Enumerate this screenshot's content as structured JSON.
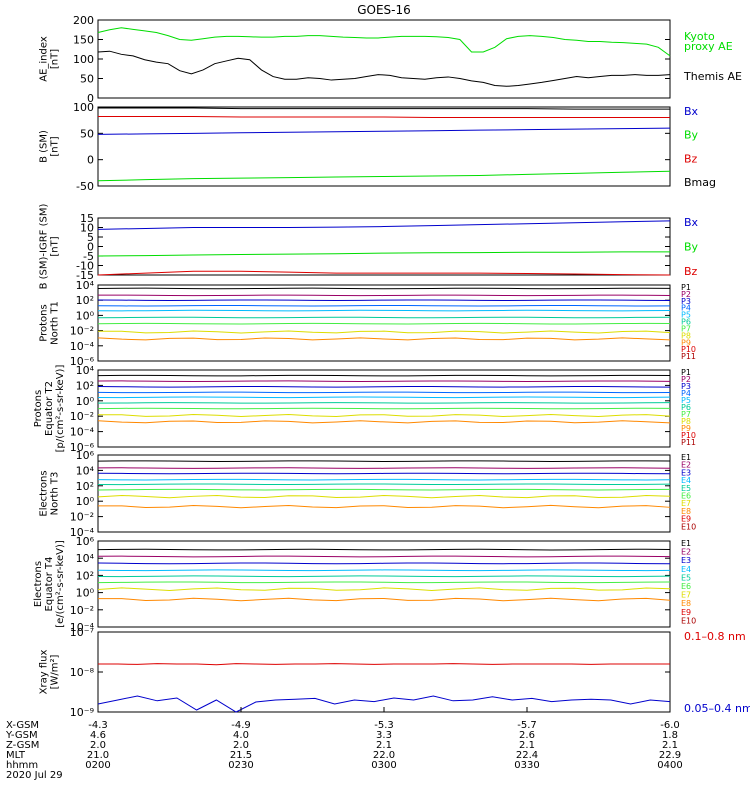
{
  "title": "GOES-16",
  "colors": {
    "black": "#000000",
    "red": "#dd0000",
    "green": "#00dd00",
    "blue": "#0000cc",
    "cyan": "#00bbff",
    "teal": "#00cc99",
    "yellow": "#dddd00",
    "orange": "#ff8800",
    "darkred": "#aa0000",
    "purple": "#990066",
    "navy": "#000099",
    "lightgreen": "#44ee44"
  },
  "chart_data": [
    {
      "type": "line",
      "ylabel": "AE_index\n[nT]",
      "ytick_labels": [
        "200",
        "150",
        "100",
        "50",
        "0"
      ],
      "ylim": [
        0,
        200
      ],
      "series": [
        {
          "name": "Kyoto proxy AE",
          "color": "#00dd00",
          "values": [
            168,
            175,
            180,
            176,
            172,
            168,
            160,
            150,
            148,
            152,
            156,
            158,
            158,
            157,
            156,
            156,
            158,
            158,
            160,
            160,
            158,
            156,
            155,
            154,
            154,
            156,
            158,
            158,
            158,
            157,
            155,
            150,
            118,
            118,
            130,
            152,
            158,
            160,
            158,
            155,
            150,
            148,
            145,
            145,
            143,
            142,
            140,
            138,
            130,
            108
          ]
        },
        {
          "name": "Themis AE",
          "color": "#000000",
          "values": [
            118,
            120,
            112,
            108,
            98,
            92,
            88,
            70,
            62,
            72,
            88,
            95,
            102,
            98,
            72,
            55,
            48,
            48,
            52,
            50,
            46,
            48,
            50,
            55,
            60,
            58,
            52,
            50,
            48,
            52,
            54,
            50,
            44,
            40,
            32,
            30,
            32,
            36,
            40,
            45,
            50,
            55,
            52,
            55,
            58,
            58,
            60,
            58,
            58,
            60
          ]
        }
      ]
    },
    {
      "type": "line",
      "ylabel": "B (SM)\n[nT]",
      "ytick_labels": [
        "100",
        "50",
        "0",
        "-50"
      ],
      "ylim": [
        -50,
        100
      ],
      "series": [
        {
          "name": "Bx",
          "color": "#0000cc",
          "values": [
            48,
            49,
            50,
            51,
            52,
            53,
            54,
            55,
            56,
            57,
            58,
            59,
            60
          ]
        },
        {
          "name": "By",
          "color": "#00dd00",
          "values": [
            -40,
            -38,
            -36,
            -35,
            -34,
            -33,
            -32,
            -31,
            -30,
            -28,
            -26,
            -24,
            -22
          ]
        },
        {
          "name": "Bz",
          "color": "#dd0000",
          "values": [
            82,
            82,
            82,
            81,
            81,
            81,
            81,
            80,
            80,
            80,
            80,
            80,
            80
          ]
        },
        {
          "name": "Bmag",
          "color": "#000000",
          "values": [
            98,
            98,
            98,
            97,
            97,
            97,
            97,
            97,
            97,
            97,
            96,
            96,
            96
          ]
        }
      ]
    },
    {
      "type": "line",
      "ylabel": "B (SM)-IGRF (SM)\n[nT]",
      "ytick_labels": [
        "15",
        "10",
        "5",
        "0",
        "-5",
        "-10",
        "-15"
      ],
      "ylim": [
        -15,
        15
      ],
      "series": [
        {
          "name": "Bx",
          "color": "#0000cc",
          "values": [
            9,
            9.5,
            10,
            10,
            10,
            10.2,
            10.5,
            11,
            11.5,
            12,
            12.5,
            13,
            13.5
          ]
        },
        {
          "name": "By",
          "color": "#00dd00",
          "values": [
            -5,
            -4.8,
            -4.5,
            -4.2,
            -4,
            -3.8,
            -3.5,
            -3.3,
            -3.2,
            -3,
            -3,
            -2.8,
            -2.8
          ]
        },
        {
          "name": "Bz",
          "color": "#dd0000",
          "values": [
            -15,
            -14,
            -13,
            -13,
            -13.5,
            -14,
            -14,
            -14,
            -14,
            -14.2,
            -14.5,
            -14.8,
            -15
          ]
        }
      ]
    },
    {
      "type": "line",
      "ylabel": "Protons\nNorth T1",
      "ytick_labels": [
        "10⁴",
        "10²",
        "10⁰",
        "10⁻²",
        "10⁻⁴",
        "10⁻⁶"
      ],
      "scale": "log",
      "ylim_exp": [
        -7,
        4
      ],
      "legend": [
        {
          "label": "P1",
          "color": "#000000"
        },
        {
          "label": "P2",
          "color": "#990066"
        },
        {
          "label": "P3",
          "color": "#0000cc"
        },
        {
          "label": "P4",
          "color": "#0066ff"
        },
        {
          "label": "P5",
          "color": "#00bbff"
        },
        {
          "label": "P6",
          "color": "#00cc99"
        },
        {
          "label": "P7",
          "color": "#44ee44"
        },
        {
          "label": "P8",
          "color": "#dddd00"
        },
        {
          "label": "P9",
          "color": "#ff8800"
        },
        {
          "label": "P10",
          "color": "#dd0000"
        },
        {
          "label": "P11",
          "color": "#aa0000"
        }
      ],
      "levels_exp": [
        3.5,
        2.5,
        1.8,
        1.0,
        0.3,
        -0.7,
        -1.6,
        -2.8,
        -3.8
      ]
    },
    {
      "type": "line",
      "ylabel": "Protons\nEquator T2\n[p/(cm²-s-sr-keV)]",
      "ytick_labels": [
        "10⁴",
        "10²",
        "10⁰",
        "10⁻²",
        "10⁻⁴",
        "10⁻⁶"
      ],
      "scale": "log",
      "ylim_exp": [
        -7,
        4
      ],
      "legend": [
        {
          "label": "P1",
          "color": "#000000"
        },
        {
          "label": "P2",
          "color": "#990066"
        },
        {
          "label": "P3",
          "color": "#0000cc"
        },
        {
          "label": "P4",
          "color": "#0066ff"
        },
        {
          "label": "P5",
          "color": "#00bbff"
        },
        {
          "label": "P6",
          "color": "#00cc99"
        },
        {
          "label": "P7",
          "color": "#44ee44"
        },
        {
          "label": "P8",
          "color": "#dddd00"
        },
        {
          "label": "P9",
          "color": "#ff8800"
        },
        {
          "label": "P10",
          "color": "#dd0000"
        },
        {
          "label": "P11",
          "color": "#aa0000"
        }
      ],
      "levels_exp": [
        3.2,
        2.4,
        1.6,
        0.8,
        0.1,
        -0.7,
        -1.5,
        -2.5,
        -3.4
      ]
    },
    {
      "type": "line",
      "ylabel": "Electrons\nNorth T3",
      "ytick_labels": [
        "10⁶",
        "10⁴",
        "10²",
        "10⁰",
        "10⁻²",
        "10⁻⁴"
      ],
      "scale": "log",
      "ylim_exp": [
        -4,
        6
      ],
      "legend": [
        {
          "label": "E1",
          "color": "#000000"
        },
        {
          "label": "E2",
          "color": "#990066"
        },
        {
          "label": "E3",
          "color": "#0000cc"
        },
        {
          "label": "E4",
          "color": "#00bbff"
        },
        {
          "label": "E5",
          "color": "#00cc99"
        },
        {
          "label": "E6",
          "color": "#44ee44"
        },
        {
          "label": "E7",
          "color": "#dddd00"
        },
        {
          "label": "E8",
          "color": "#ff8800"
        },
        {
          "label": "E9",
          "color": "#dd0000"
        },
        {
          "label": "E10",
          "color": "#aa0000"
        }
      ],
      "levels_exp": [
        5.2,
        4.3,
        3.6,
        2.8,
        2.2,
        1.5,
        0.6,
        -0.7
      ]
    },
    {
      "type": "line",
      "ylabel": "Electrons\nEquator T4\n[e/(cm²-s-sr-keV)]",
      "ytick_labels": [
        "10⁶",
        "10⁴",
        "10²",
        "10⁰",
        "10⁻²",
        "10⁻⁴"
      ],
      "scale": "log",
      "ylim_exp": [
        -4,
        6
      ],
      "legend": [
        {
          "label": "E1",
          "color": "#000000"
        },
        {
          "label": "E2",
          "color": "#990066"
        },
        {
          "label": "E3",
          "color": "#0000cc"
        },
        {
          "label": "E4",
          "color": "#00bbff"
        },
        {
          "label": "E5",
          "color": "#00cc99"
        },
        {
          "label": "E6",
          "color": "#44ee44"
        },
        {
          "label": "E7",
          "color": "#dddd00"
        },
        {
          "label": "E8",
          "color": "#ff8800"
        },
        {
          "label": "E9",
          "color": "#dd0000"
        },
        {
          "label": "E10",
          "color": "#aa0000"
        }
      ],
      "levels_exp": [
        5.0,
        4.2,
        3.4,
        2.6,
        1.9,
        1.2,
        0.4,
        -0.8
      ]
    },
    {
      "type": "line",
      "ylabel": "Xray flux\n[W/m²]",
      "ytick_labels": [
        "10⁻⁷",
        "10⁻⁸",
        "10⁻⁹"
      ],
      "scale": "log",
      "ylim_exp": [
        -9,
        -7
      ],
      "series": [
        {
          "name": "0.1–0.8 nm",
          "color": "#dd0000",
          "values_exp": [
            -7.8,
            -7.8,
            -7.81,
            -7.79,
            -7.8,
            -7.8,
            -7.82,
            -7.79,
            -7.8,
            -7.81,
            -7.8,
            -7.8,
            -7.79,
            -7.8,
            -7.81,
            -7.8,
            -7.8,
            -7.8,
            -7.79,
            -7.8,
            -7.81,
            -7.8,
            -7.8,
            -7.8,
            -7.8,
            -7.81,
            -7.8,
            -7.8,
            -7.8,
            -7.8
          ]
        },
        {
          "name": "0.05–0.4 nm",
          "color": "#0000cc",
          "values_exp": [
            -8.8,
            -8.7,
            -8.6,
            -8.72,
            -8.65,
            -8.95,
            -8.7,
            -9.0,
            -8.75,
            -8.7,
            -8.68,
            -8.66,
            -8.8,
            -8.7,
            -8.74,
            -8.65,
            -8.7,
            -8.6,
            -8.72,
            -8.7,
            -8.62,
            -8.7,
            -8.66,
            -8.74,
            -8.7,
            -8.68,
            -8.7,
            -8.8,
            -8.7,
            -8.74
          ]
        }
      ]
    }
  ],
  "panel_labels": [
    [
      "Kyoto",
      "proxy AE",
      "Themis AE"
    ],
    [
      "Bx",
      "By",
      "Bz",
      "Bmag"
    ],
    [
      "Bx",
      "By",
      "Bz"
    ],
    [
      "P1",
      "P2",
      "P3",
      "P4",
      "P5",
      "P6",
      "P7",
      "P8",
      "P9",
      "P10",
      "P11"
    ],
    [
      "P1",
      "P2",
      "P3",
      "P4",
      "P5",
      "P6",
      "P7",
      "P8",
      "P9",
      "P10",
      "P11"
    ],
    [
      "E1",
      "E2",
      "E3",
      "E4",
      "E5",
      "E6",
      "E7",
      "E8",
      "E9",
      "E10"
    ],
    [
      "E1",
      "E2",
      "E3",
      "E4",
      "E5",
      "E6",
      "E7",
      "E8",
      "E9",
      "E10"
    ],
    [
      "0.1–0.8 nm",
      "0.05–0.4 nm"
    ]
  ],
  "axis_table": {
    "row_labels": [
      "X-GSM",
      "Y-GSM",
      "Z-GSM",
      "MLT",
      "hhmm",
      "2020 Jul 29"
    ],
    "columns": [
      [
        "-4.3",
        "4.6",
        "2.0",
        "21.0",
        "0200"
      ],
      [
        "-4.9",
        "4.0",
        "2.0",
        "21.5",
        "0230"
      ],
      [
        "-5.3",
        "3.3",
        "2.1",
        "22.0",
        "0300"
      ],
      [
        "-5.7",
        "2.6",
        "2.1",
        "22.4",
        "0330"
      ],
      [
        "-6.0",
        "1.8",
        "2.1",
        "22.9",
        "0400"
      ]
    ]
  }
}
